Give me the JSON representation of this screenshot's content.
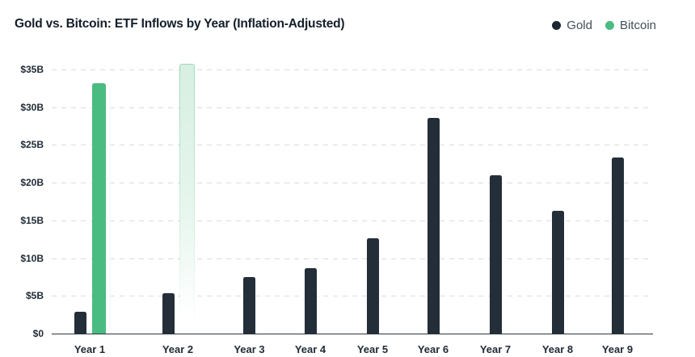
{
  "header": {
    "title": "Gold vs. Bitcoin: ETF Inflows by Year (Inflation-Adjusted)"
  },
  "legend": [
    {
      "label": "Gold",
      "color": "#1c2630"
    },
    {
      "label": "Bitcoin",
      "color": "#4abc81"
    }
  ],
  "chart_data": {
    "type": "bar",
    "title": "Gold vs. Bitcoin: ETF Inflows by Year (Inflation-Adjusted)",
    "unit": "USD billions",
    "categories": [
      "Year 1",
      "Year 2",
      "Year 3",
      "Year 4",
      "Year 5",
      "Year 6",
      "Year 7",
      "Year 8",
      "Year 9"
    ],
    "series": [
      {
        "name": "Gold",
        "color": "#242e38",
        "values": [
          2.9,
          5.4,
          7.5,
          8.7,
          12.6,
          28.6,
          21,
          16.3,
          23.3
        ]
      },
      {
        "name": "Bitcoin",
        "color": "#4abc81",
        "values": [
          33.2,
          35.7,
          null,
          null,
          null,
          null,
          null,
          null,
          null
        ],
        "bar_styles": [
          "solid",
          "ghost",
          null,
          null,
          null,
          null,
          null,
          null,
          null
        ],
        "ghost_note": "Year 2 Bitcoin bar rendered faded/translucent (projected)"
      }
    ],
    "xlabel": "",
    "ylabel": "",
    "ylim": [
      0,
      35
    ],
    "y_tick_values": [
      35,
      30,
      25,
      20,
      15,
      10,
      5,
      0
    ],
    "y_ticks": [
      "$35B",
      "$30B",
      "$25B",
      "$20B",
      "$15B",
      "$10B",
      "$5B",
      "$0"
    ],
    "grid": "horizontal dashed",
    "baseline": "solid dark at $0",
    "legend_position": "top-right"
  }
}
